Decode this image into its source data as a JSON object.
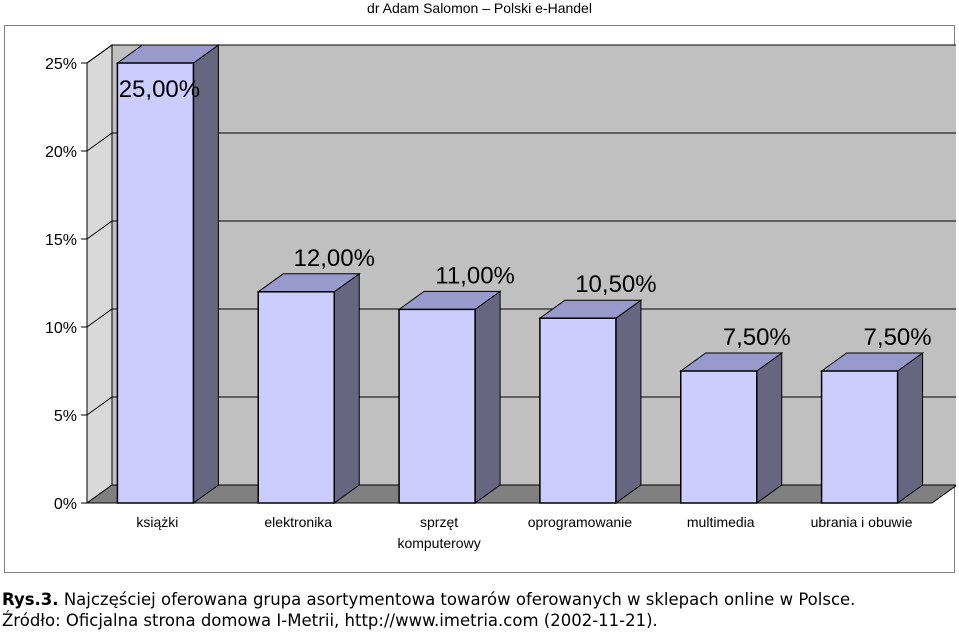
{
  "header": {
    "text": "dr Adam Salomon – Polski e-Handel"
  },
  "caption": {
    "label": "Rys.3.",
    "text": "Najczęściej oferowana grupa asortymentowa towarów oferowanych w sklepach online w Polsce.",
    "source": "Źródło: Oficjalna strona domowa I-Metrii, http://www.imetria.com (2002-11-21)."
  },
  "colors": {
    "bar_front": "#ccccff",
    "bar_top": "#9999cc",
    "bar_side": "#666680",
    "wall": "#c0c0c0",
    "floor": "#808080",
    "grid": "#000000"
  },
  "chart_data": {
    "type": "bar",
    "style": "3d",
    "categories": [
      "książki",
      "elektronika",
      "sprzęt komputerowy",
      "oprogramowanie",
      "multimedia",
      "ubrania i obuwie"
    ],
    "category_lines": [
      [
        "książki"
      ],
      [
        "elektronika"
      ],
      [
        "sprzęt",
        "komputerowy"
      ],
      [
        "oprogramowanie"
      ],
      [
        "multimedia"
      ],
      [
        "ubrania i obuwie"
      ]
    ],
    "values": [
      25.0,
      12.0,
      11.0,
      10.5,
      7.5,
      7.5
    ],
    "data_labels": [
      "25,00%",
      "12,00%",
      "11,00%",
      "10,50%",
      "7,50%",
      "7,50%"
    ],
    "yticks": [
      0,
      5,
      10,
      15,
      20,
      25
    ],
    "ytick_labels": [
      "0%",
      "5%",
      "10%",
      "15%",
      "20%",
      "25%"
    ],
    "ylim": [
      0,
      25
    ],
    "grid": true,
    "legend": "none"
  }
}
